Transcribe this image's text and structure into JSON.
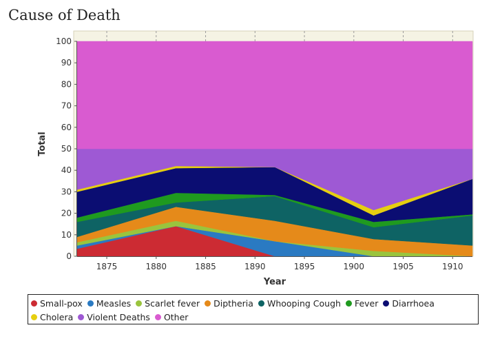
{
  "page_title": "Cause of Death",
  "chart_data": {
    "type": "area",
    "stacked": true,
    "title": "",
    "xlabel": "Year",
    "ylabel": "Total",
    "xlim": [
      1872,
      1912
    ],
    "ylim": [
      0,
      100
    ],
    "x_ticks": [
      1875,
      1880,
      1885,
      1890,
      1895,
      1900,
      1905,
      1910
    ],
    "y_ticks": [
      0,
      10,
      20,
      30,
      40,
      50,
      60,
      70,
      80,
      90,
      100
    ],
    "grid": "vertical dashed",
    "legend_position": "bottom",
    "x": [
      1872,
      1882,
      1892,
      1902,
      1912
    ],
    "series": [
      {
        "name": "Small-pox",
        "color": "#cc2b33",
        "values": [
          3.5,
          14,
          0,
          0,
          0
        ]
      },
      {
        "name": "Measles",
        "color": "#2a7ac2",
        "values": [
          1.5,
          0,
          7,
          0,
          0
        ]
      },
      {
        "name": "Scarlet fever",
        "color": "#9ac43d",
        "values": [
          1.5,
          2.5,
          0,
          2.5,
          0
        ]
      },
      {
        "name": "Diptheria",
        "color": "#e58a1a",
        "values": [
          2.5,
          6.5,
          9.5,
          5.5,
          5
        ]
      },
      {
        "name": "Whooping Cough",
        "color": "#0e6364",
        "values": [
          7,
          2,
          11.5,
          5.5,
          14
        ]
      },
      {
        "name": "Fever",
        "color": "#1f9a1f",
        "values": [
          2,
          4.5,
          0.5,
          2.5,
          0.5
        ]
      },
      {
        "name": "Diarrhoea",
        "color": "#0b0d72",
        "values": [
          12,
          11.5,
          13,
          3,
          16.5
        ]
      },
      {
        "name": "Cholera",
        "color": "#e6cf10",
        "values": [
          1,
          1,
          0,
          2.5,
          0
        ]
      },
      {
        "name": "Violent Deaths",
        "color": "#9e59d4",
        "values": [
          19,
          8,
          8.5,
          28.5,
          14
        ]
      },
      {
        "name": "Other",
        "color": "#d95bd0",
        "values": [
          50,
          50,
          50,
          50,
          50
        ]
      }
    ]
  }
}
